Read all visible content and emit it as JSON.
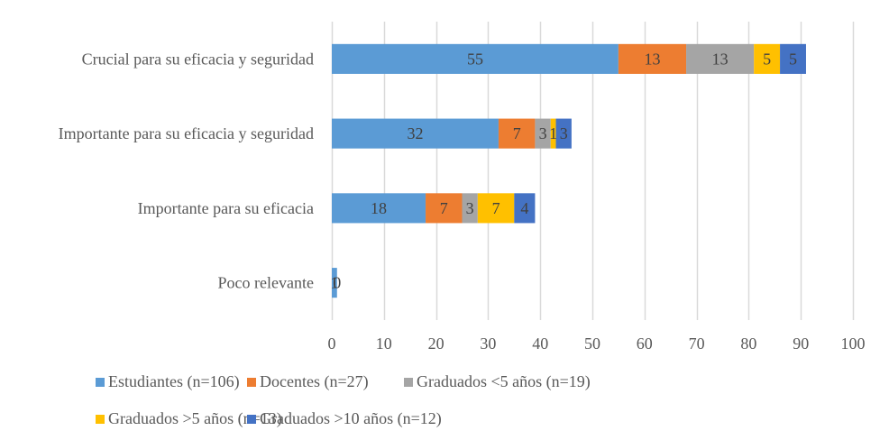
{
  "chart_data": {
    "type": "bar",
    "orientation": "horizontal",
    "stacked": true,
    "title": "",
    "xlabel": "",
    "ylabel": "",
    "xlim": [
      0,
      100
    ],
    "x_ticks": [
      0,
      10,
      20,
      30,
      40,
      50,
      60,
      70,
      80,
      90,
      100
    ],
    "grid": true,
    "legend_position": "bottom",
    "categories": [
      "Crucial para su eficacia y seguridad",
      "Importante para su eficacia y seguridad",
      "Importante para su eficacia",
      "Poco relevante"
    ],
    "series": [
      {
        "name": "Estudiantes (n=106)",
        "color": "#5b9bd5",
        "values": [
          55,
          32,
          18,
          1
        ],
        "labels": [
          "55",
          "32",
          "18",
          "1"
        ]
      },
      {
        "name": "Docentes (n=27)",
        "color": "#ed7d31",
        "values": [
          13,
          7,
          7,
          0
        ],
        "labels": [
          "13",
          "7",
          "7",
          "0"
        ]
      },
      {
        "name": "Graduados <5 años (n=19)",
        "color": "#a5a5a5",
        "values": [
          13,
          3,
          3,
          0
        ],
        "labels": [
          "13",
          "3",
          "3",
          "0"
        ]
      },
      {
        "name": "Graduados >5 años (n=13)",
        "color": "#ffc000",
        "values": [
          5,
          1,
          7,
          0
        ],
        "labels": [
          "5",
          "1",
          "7",
          "0"
        ]
      },
      {
        "name": "Graduados >10 años (n=12)",
        "color": "#4472c4",
        "values": [
          5,
          3,
          4,
          0
        ],
        "labels": [
          "5",
          "3",
          "4",
          "0"
        ]
      }
    ]
  }
}
